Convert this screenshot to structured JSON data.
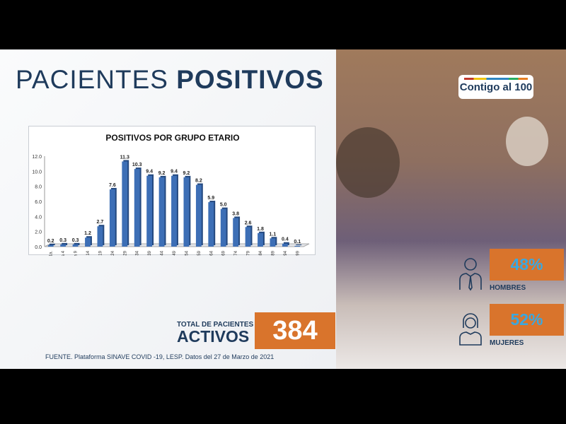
{
  "title": {
    "light": "PACIENTES ",
    "bold": "POSITIVOS"
  },
  "chart_data": {
    "type": "bar",
    "title": "POSITIVOS POR GRUPO ETARIO",
    "categories": [
      "< a 1a.",
      "1 a 4",
      "5 a 9",
      "10 a 14",
      "15 a 19",
      "20 a 24",
      "25 a 29",
      "30 a 34",
      "35 a 39",
      "40 a 44",
      "45 a 49",
      "50 a 54",
      "55 a 59",
      "60 a 64",
      "65 a 69",
      "70 a 74",
      "75 a 79",
      "80 a 84",
      "85 a 89",
      "90 a 94",
      "95 a 99"
    ],
    "values": [
      0.2,
      0.3,
      0.3,
      1.2,
      2.7,
      7.6,
      11.3,
      10.3,
      9.4,
      9.2,
      9.4,
      9.2,
      8.2,
      5.9,
      5.0,
      3.8,
      2.6,
      1.8,
      1.1,
      0.4,
      0.1
    ],
    "ylim": [
      0,
      12
    ],
    "yticks": [
      "0.0",
      "2.0",
      "4.0",
      "6.0",
      "8.0",
      "10.0",
      "12.0"
    ],
    "bar_color": "#3d6fb6",
    "grid": false
  },
  "total": {
    "small": "TOTAL DE PACIENTES",
    "big": "ACTIVOS",
    "value": "384"
  },
  "source": "FUENTE. Plataforma SINAVE COVID -19, LESP. Datos del 27 de Marzo de 2021",
  "logo": "Contigo al 100",
  "gender": [
    {
      "pct": "48%",
      "label": "HOMBRES",
      "icon": "man-icon"
    },
    {
      "pct": "52%",
      "label": "MUJERES",
      "icon": "woman-icon"
    }
  ],
  "colors": {
    "navy": "#1f3b5c",
    "orange": "#d9742c",
    "pct_text": "#3aa8e0"
  }
}
